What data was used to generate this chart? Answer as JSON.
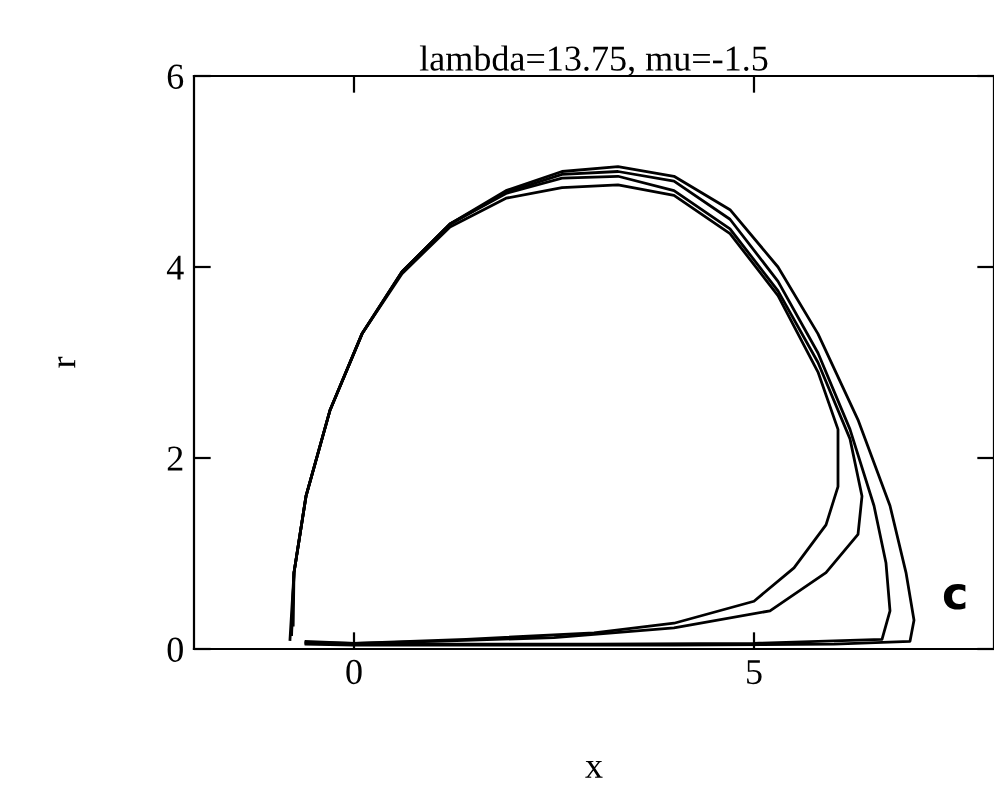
{
  "chart_data": {
    "type": "line",
    "title": "lambda=13.75, mu=-1.5",
    "xlabel": "x",
    "ylabel": "r",
    "xlim": [
      -2,
      8
    ],
    "xticks": [
      0,
      5
    ],
    "ylim": [
      0,
      6
    ],
    "yticks": [
      0,
      2,
      4,
      6
    ],
    "grid": false,
    "marker": "none",
    "line_style": "solid",
    "annotations": [
      "c"
    ],
    "series": [
      {
        "color": "#000000",
        "x": [
          -0.8,
          -0.75,
          -0.6,
          -0.3,
          0.1,
          0.6,
          1.2,
          1.9,
          2.6,
          3.3,
          4.0,
          4.7,
          5.3,
          5.8,
          6.3,
          6.7,
          6.9,
          7.0,
          6.95,
          6.0,
          4.0,
          2.0,
          0,
          -0.6
        ],
        "values": [
          0.1,
          0.8,
          1.6,
          2.5,
          3.3,
          3.95,
          4.45,
          4.8,
          5.0,
          5.05,
          4.95,
          4.6,
          4.0,
          3.3,
          2.4,
          1.5,
          0.8,
          0.3,
          0.08,
          0.05,
          0.04,
          0.04,
          0.04,
          0.05
        ]
      },
      {
        "color": "#000000",
        "x": [
          -0.78,
          -0.75,
          -0.6,
          -0.3,
          0.1,
          0.6,
          1.2,
          1.9,
          2.6,
          3.3,
          4.0,
          4.7,
          5.3,
          5.8,
          6.2,
          6.5,
          6.65,
          6.7,
          6.6,
          5.0,
          3.0,
          1.0,
          0,
          -0.6
        ],
        "values": [
          0.15,
          0.8,
          1.6,
          2.5,
          3.3,
          3.95,
          4.45,
          4.78,
          4.97,
          5.0,
          4.9,
          4.5,
          3.85,
          3.1,
          2.3,
          1.5,
          0.9,
          0.4,
          0.1,
          0.06,
          0.05,
          0.05,
          0.05,
          0.06
        ]
      },
      {
        "color": "#000000",
        "x": [
          -0.78,
          -0.75,
          -0.6,
          -0.3,
          0.1,
          0.6,
          1.2,
          1.9,
          2.6,
          3.3,
          4.0,
          4.7,
          5.3,
          5.8,
          6.2,
          6.35,
          6.3,
          5.9,
          5.2,
          4.0,
          2.5,
          1.0,
          0,
          -0.6
        ],
        "values": [
          0.2,
          0.8,
          1.6,
          2.5,
          3.3,
          3.95,
          4.45,
          4.77,
          4.93,
          4.95,
          4.8,
          4.4,
          3.75,
          3.0,
          2.2,
          1.6,
          1.2,
          0.8,
          0.4,
          0.22,
          0.12,
          0.08,
          0.06,
          0.07
        ]
      },
      {
        "color": "#000000",
        "x": [
          -0.76,
          -0.75,
          -0.6,
          -0.3,
          0.1,
          0.6,
          1.2,
          1.9,
          2.6,
          3.3,
          4.0,
          4.7,
          5.3,
          5.8,
          6.05,
          6.05,
          5.9,
          5.5,
          5.0,
          4.0,
          3.0,
          1.4,
          0,
          -0.6
        ],
        "values": [
          0.25,
          0.8,
          1.6,
          2.5,
          3.3,
          3.93,
          4.42,
          4.72,
          4.83,
          4.86,
          4.75,
          4.35,
          3.7,
          2.9,
          2.3,
          1.7,
          1.3,
          0.85,
          0.5,
          0.27,
          0.17,
          0.1,
          0.06,
          0.08
        ]
      }
    ]
  }
}
